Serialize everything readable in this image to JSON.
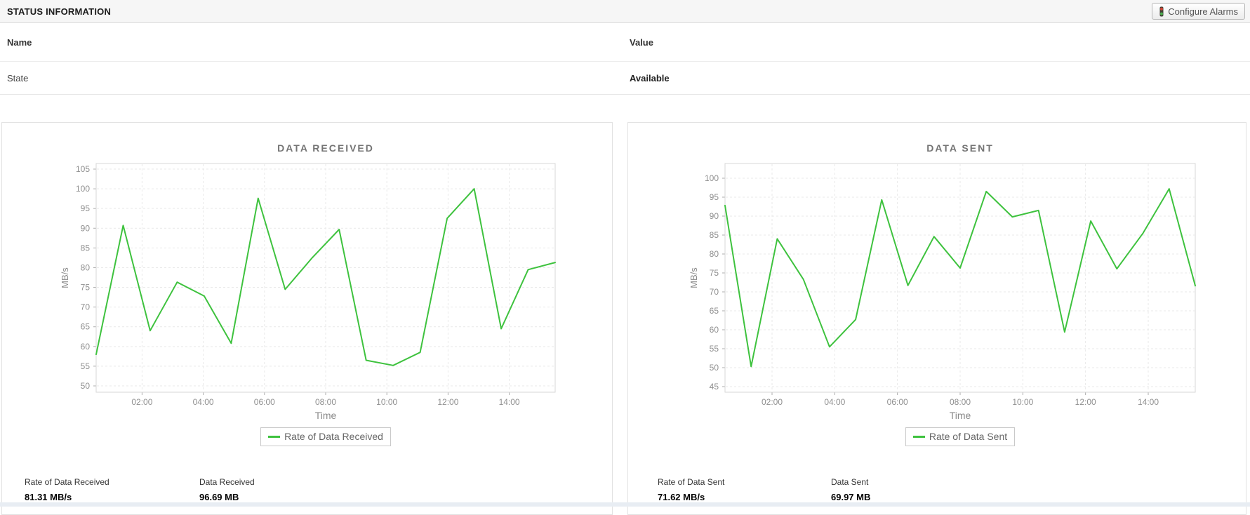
{
  "header": {
    "title": "STATUS INFORMATION",
    "configure_alarms": "Configure Alarms"
  },
  "status_table": {
    "name_header": "Name",
    "value_header": "Value",
    "rows": [
      {
        "name": "State",
        "value": "Available"
      }
    ]
  },
  "chart_data": [
    {
      "type": "line",
      "title": "DATA RECEIVED",
      "xlabel": "Time",
      "ylabel": "MB/s",
      "legend": [
        "Rate of Data Received"
      ],
      "legend_position": "bottom",
      "grid": true,
      "line_color": "#3ec23e",
      "ylim": [
        50,
        105
      ],
      "y_tick_step": 5,
      "x_hours_start": 0.5,
      "x_hours_end": 15.5,
      "x_tick_hours": [
        2,
        4,
        6,
        8,
        10,
        12,
        14
      ],
      "x_tick_labels": [
        "02:00",
        "04:00",
        "06:00",
        "08:00",
        "10:00",
        "12:00",
        "14:00"
      ],
      "values": [
        58,
        90.7,
        64,
        76.3,
        72.8,
        60.8,
        97.6,
        74.5,
        82.5,
        89.7,
        56.5,
        55.2,
        58.5,
        92.5,
        100,
        64.5,
        79.5,
        81.31
      ]
    },
    {
      "type": "line",
      "title": "DATA SENT",
      "xlabel": "Time",
      "ylabel": "MB/s",
      "legend": [
        "Rate of Data Sent"
      ],
      "legend_position": "bottom",
      "grid": true,
      "line_color": "#3ec23e",
      "ylim": [
        45,
        100
      ],
      "y_tick_step": 5,
      "x_hours_start": 0.5,
      "x_hours_end": 15.5,
      "x_tick_hours": [
        2,
        4,
        6,
        8,
        10,
        12,
        14
      ],
      "x_tick_labels": [
        "02:00",
        "04:00",
        "06:00",
        "08:00",
        "10:00",
        "12:00",
        "14:00"
      ],
      "values": [
        92.8,
        50.3,
        84,
        73.3,
        55.5,
        62.7,
        94.3,
        71.7,
        84.6,
        76.3,
        96.5,
        89.8,
        91.5,
        59.4,
        88.7,
        76.1,
        85.5,
        97.2,
        71.62
      ]
    }
  ],
  "cards": [
    {
      "stats": [
        {
          "label": "Rate of Data Received",
          "value": "81.31 MB/s"
        },
        {
          "label": "Data Received",
          "value": "96.69 MB"
        }
      ]
    },
    {
      "stats": [
        {
          "label": "Rate of Data Sent",
          "value": "71.62 MB/s"
        },
        {
          "label": "Data Sent",
          "value": "69.97 MB"
        }
      ]
    }
  ]
}
